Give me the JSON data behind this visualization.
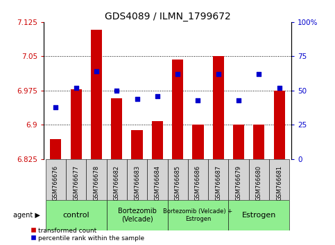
{
  "title": "GDS4089 / ILMN_1799672",
  "samples": [
    "GSM766676",
    "GSM766677",
    "GSM766678",
    "GSM766682",
    "GSM766683",
    "GSM766684",
    "GSM766685",
    "GSM766686",
    "GSM766687",
    "GSM766679",
    "GSM766680",
    "GSM766681"
  ],
  "bar_values": [
    6.868,
    6.978,
    7.108,
    6.958,
    6.888,
    6.908,
    7.043,
    6.9,
    7.05,
    6.9,
    6.9,
    6.975
  ],
  "blue_dot_values": [
    38,
    52,
    64,
    50,
    44,
    46,
    62,
    43,
    62,
    43,
    62,
    52
  ],
  "bar_bottom": 6.825,
  "ylim_left": [
    6.825,
    7.125
  ],
  "ylim_right": [
    0,
    100
  ],
  "yticks_left": [
    6.825,
    6.9,
    6.975,
    7.05,
    7.125
  ],
  "ytick_labels_left": [
    "6.825",
    "6.9",
    "6.975",
    "7.05",
    "7.125"
  ],
  "yticks_right": [
    0,
    25,
    50,
    75,
    100
  ],
  "ytick_labels_right": [
    "0",
    "25",
    "50",
    "75",
    "100%"
  ],
  "hlines": [
    6.9,
    6.975,
    7.05
  ],
  "bar_color": "#cc0000",
  "dot_color": "#0000cc",
  "groups": [
    {
      "label": "control",
      "start": 0,
      "end": 3,
      "color": "#90ee90",
      "fontsize": 8
    },
    {
      "label": "Bortezomib\n(Velcade)",
      "start": 3,
      "end": 6,
      "color": "#90ee90",
      "fontsize": 7
    },
    {
      "label": "Bortezomib (Velcade) +\nEstrogen",
      "start": 6,
      "end": 9,
      "color": "#90ee90",
      "fontsize": 6
    },
    {
      "label": "Estrogen",
      "start": 9,
      "end": 12,
      "color": "#90ee90",
      "fontsize": 8
    }
  ],
  "agent_label": "agent",
  "legend_bar_label": "transformed count",
  "legend_dot_label": "percentile rank within the sample",
  "tick_label_color_left": "#cc0000",
  "tick_label_color_right": "#0000cc",
  "title_fontsize": 10,
  "tick_fontsize": 7.5,
  "sample_fontsize": 6,
  "bar_width": 0.55
}
